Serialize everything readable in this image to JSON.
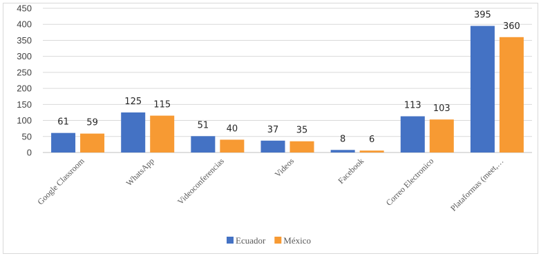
{
  "chart_data": {
    "type": "bar",
    "categories": [
      "Google Classroom",
      "WhatsApp",
      "Videoconferencias",
      "Videos",
      "Facebook",
      "Correo Electronico",
      "Plataformas (meet,…"
    ],
    "series": [
      {
        "name": "Ecuador",
        "color": "#4472c4",
        "values": [
          61,
          125,
          51,
          37,
          8,
          113,
          395
        ]
      },
      {
        "name": "México",
        "color": "#f79a33",
        "values": [
          59,
          115,
          40,
          35,
          6,
          103,
          360
        ]
      }
    ],
    "ylim": [
      0,
      450
    ],
    "yticks": [
      0,
      50,
      100,
      150,
      200,
      250,
      300,
      350,
      400,
      450
    ],
    "grid": true,
    "legend_position": "bottom",
    "title": "",
    "xlabel": "",
    "ylabel": ""
  }
}
